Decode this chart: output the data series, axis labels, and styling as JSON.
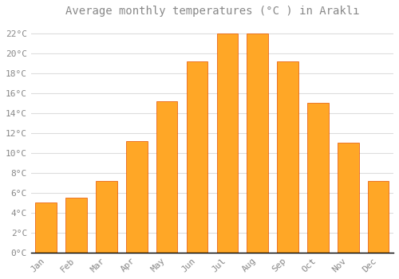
{
  "title": "Average monthly temperatures (°C ) in Araklı",
  "months": [
    "Jan",
    "Feb",
    "Mar",
    "Apr",
    "May",
    "Jun",
    "Jul",
    "Aug",
    "Sep",
    "Oct",
    "Nov",
    "Dec"
  ],
  "values": [
    5.0,
    5.5,
    7.2,
    11.2,
    15.2,
    19.2,
    22.0,
    22.0,
    19.2,
    15.0,
    11.0,
    7.2
  ],
  "bar_color": "#FFA726",
  "bar_edge_color": "#E65100",
  "background_color": "#FFFFFF",
  "grid_color": "#DDDDDD",
  "ylim": [
    0,
    23
  ],
  "yticks": [
    0,
    2,
    4,
    6,
    8,
    10,
    12,
    14,
    16,
    18,
    20,
    22
  ],
  "ytick_step": 2,
  "title_fontsize": 10,
  "tick_fontsize": 8,
  "font_color": "#888888"
}
